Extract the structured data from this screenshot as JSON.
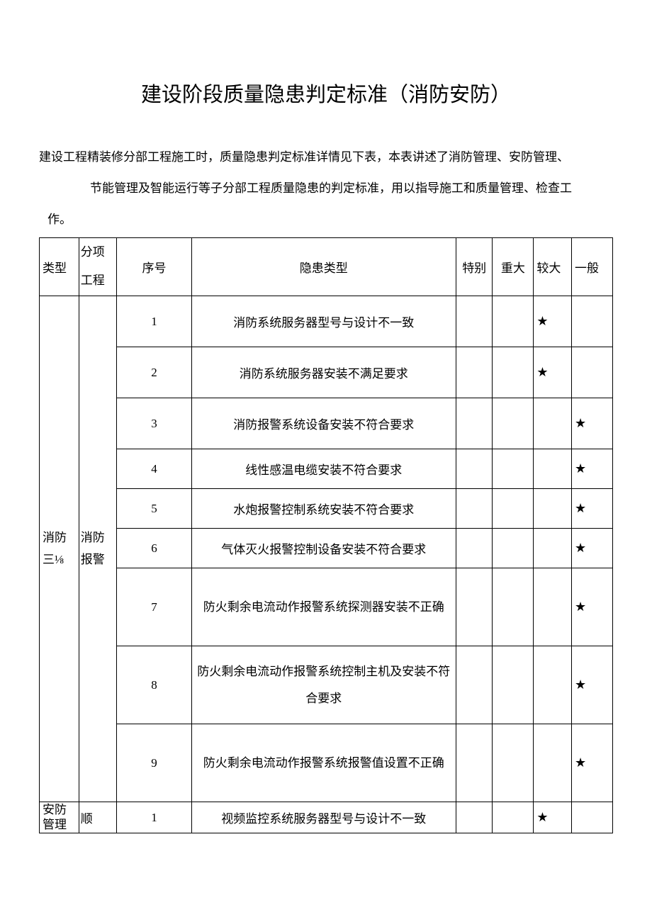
{
  "title": "建设阶段质量隐患判定标准（消防安防）",
  "intro_line1": "建设工程精装修分部工程施工时，质量隐患判定标准详情见下表，本表讲述了消防管理、安防管理、",
  "intro_line2": "节能管理及智能运行等子分部工程质量隐患的判定标准，用以指导施工和质量管理、检查工",
  "intro_line3": "作。",
  "headers": {
    "type": "类型",
    "sub": "分项工程",
    "seq": "序号",
    "hazard": "隐患类型",
    "special": "特别",
    "major": "重大",
    "larger": "较大",
    "general": "一般"
  },
  "star_symbol": "★",
  "group1": {
    "type_label": "消防三⅛",
    "sub_label": "消防报警"
  },
  "group2": {
    "type_label": "安防管理",
    "sub_label": "顺"
  },
  "rows": [
    {
      "seq": "1",
      "hazard": "消防系统服务器型号与设计不一致",
      "special": "",
      "major": "",
      "larger": "★",
      "general": ""
    },
    {
      "seq": "2",
      "hazard": "消防系统服务器安装不满足要求",
      "special": "",
      "major": "",
      "larger": "★",
      "general": ""
    },
    {
      "seq": "3",
      "hazard": "消防报警系统设备安装不符合要求",
      "special": "",
      "major": "",
      "larger": "",
      "general": "★"
    },
    {
      "seq": "4",
      "hazard": "线性感温电缆安装不符合要求",
      "special": "",
      "major": "",
      "larger": "",
      "general": "★"
    },
    {
      "seq": "5",
      "hazard": "水炮报警控制系统安装不符合要求",
      "special": "",
      "major": "",
      "larger": "",
      "general": "★"
    },
    {
      "seq": "6",
      "hazard": "气体灭火报警控制设备安装不符合要求",
      "special": "",
      "major": "",
      "larger": "",
      "general": "★"
    },
    {
      "seq": "7",
      "hazard": "防火剩余电流动作报警系统探测器安装不正确",
      "special": "",
      "major": "",
      "larger": "",
      "general": "★"
    },
    {
      "seq": "8",
      "hazard": "防火剩余电流动作报警系统控制主机及安装不符合要求",
      "special": "",
      "major": "",
      "larger": "",
      "general": "★"
    },
    {
      "seq": "9",
      "hazard": "防火剩余电流动作报警系统报警值设置不正确",
      "special": "",
      "major": "",
      "larger": "",
      "general": "★"
    },
    {
      "seq": "1",
      "hazard": "视频监控系统服务器型号与设计不一致",
      "special": "",
      "major": "",
      "larger": "★",
      "general": ""
    }
  ]
}
